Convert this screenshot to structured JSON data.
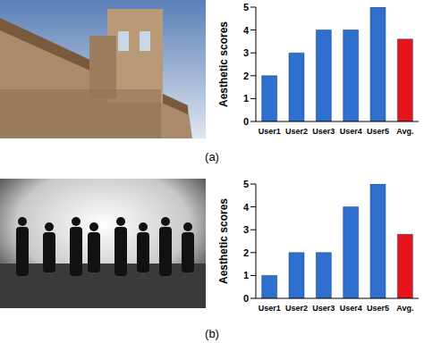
{
  "chart_data": [
    {
      "type": "bar",
      "title": "(a)",
      "y_label": "Aesthetic scores",
      "categories": [
        "User1",
        "User2",
        "User3",
        "User4",
        "User5",
        "Avg."
      ],
      "values": [
        2,
        3,
        4,
        4,
        5,
        3.6
      ],
      "colors": [
        "#2f6fce",
        "#2f6fce",
        "#2f6fce",
        "#2f6fce",
        "#2f6fce",
        "#e8141c"
      ],
      "ylim": [
        0,
        5
      ],
      "yticks": [
        0,
        1,
        2,
        3,
        4,
        5
      ],
      "grid": false
    },
    {
      "type": "bar",
      "title": "(b)",
      "y_label": "Aesthetic scores",
      "categories": [
        "User1",
        "User2",
        "User3",
        "User4",
        "User5",
        "Avg."
      ],
      "values": [
        1,
        2,
        2,
        4,
        5,
        2.8
      ],
      "colors": [
        "#2f6fce",
        "#2f6fce",
        "#2f6fce",
        "#2f6fce",
        "#2f6fce",
        "#e8141c"
      ],
      "ylim": [
        0,
        5
      ],
      "yticks": [
        0,
        1,
        2,
        3,
        4,
        5
      ],
      "grid": false
    }
  ]
}
